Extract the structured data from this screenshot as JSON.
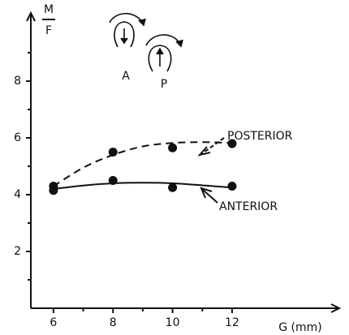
{
  "chart_data": {
    "type": "scatter",
    "y_label": {
      "numerator": "M",
      "denominator": "F"
    },
    "x_label": "G (mm)",
    "annotations": [
      "A",
      "P"
    ],
    "xlim": [
      5.24,
      15.6
    ],
    "ylim": [
      0,
      10.4
    ],
    "xticks": [
      6,
      8,
      10,
      12
    ],
    "xminor": [
      7,
      9,
      11
    ],
    "yticks": [
      2,
      4,
      6,
      8
    ],
    "yminor": [
      1,
      3,
      5,
      7,
      9
    ],
    "color": "#111111",
    "series": [
      {
        "name": "POSTERIOR",
        "dashed": true,
        "x": [
          6,
          8,
          10,
          12
        ],
        "values": [
          4.3,
          5.5,
          5.65,
          5.8
        ],
        "fit_x": [
          6,
          7,
          8,
          9,
          10,
          11,
          12
        ],
        "fit": [
          4.3,
          4.95,
          5.4,
          5.7,
          5.82,
          5.85,
          5.82
        ]
      },
      {
        "name": "ANTERIOR",
        "dashed": false,
        "x": [
          6,
          8,
          10,
          12
        ],
        "values": [
          4.15,
          4.5,
          4.25,
          4.3
        ],
        "fit_x": [
          6,
          7,
          8,
          9,
          10,
          11,
          12
        ],
        "fit": [
          4.2,
          4.32,
          4.4,
          4.42,
          4.4,
          4.33,
          4.25
        ]
      }
    ]
  }
}
